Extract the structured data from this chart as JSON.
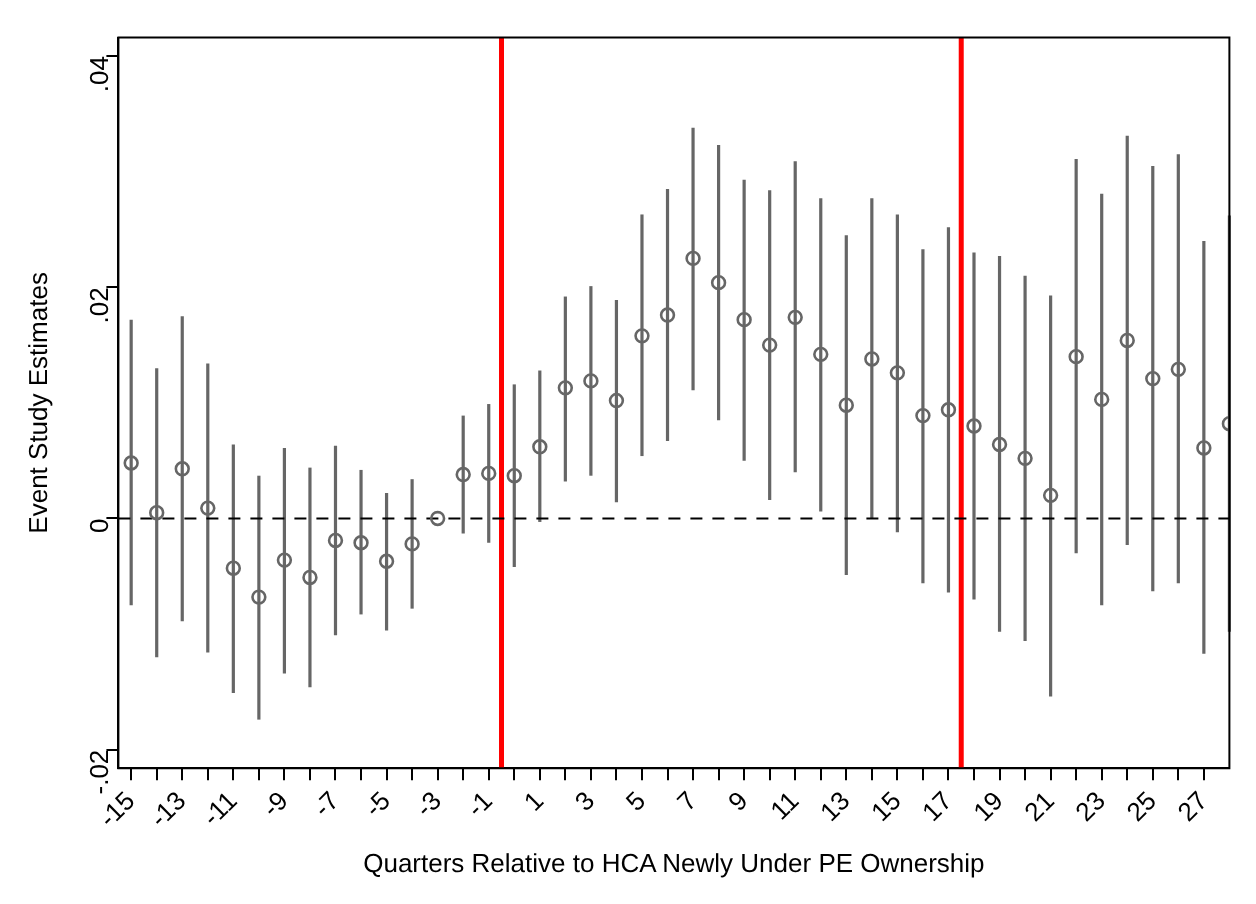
{
  "chart_data": {
    "type": "scatter",
    "xlabel": "Quarters Relative to HCA Newly Under PE Ownership",
    "ylabel": "Event Study Estimates",
    "x": [
      -15,
      -14,
      -13,
      -12,
      -11,
      -10,
      -9,
      -8,
      -7,
      -6,
      -5,
      -4,
      -3,
      -2,
      -1,
      0,
      1,
      2,
      3,
      4,
      5,
      6,
      7,
      8,
      9,
      10,
      11,
      12,
      13,
      14,
      15,
      16,
      17,
      18,
      19,
      20,
      21,
      22,
      23,
      24,
      25,
      26,
      27,
      28
    ],
    "series": [
      {
        "color": "#666666",
        "values": [
          0.0048,
          0.0005,
          0.0043,
          0.0009,
          -0.0043,
          -0.0068,
          -0.0036,
          -0.0051,
          -0.0019,
          -0.0021,
          -0.0037,
          -0.0022,
          0,
          0.0038,
          0.0039,
          0.0037,
          0.0062,
          0.0113,
          0.0119,
          0.0102,
          0.0158,
          0.0176,
          0.0225,
          0.0204,
          0.0172,
          0.015,
          0.0174,
          0.0142,
          0.0098,
          0.0138,
          0.0126,
          0.0089,
          0.0094,
          0.008,
          0.0064,
          0.0052,
          0.002,
          0.014,
          0.0103,
          0.0154,
          0.0121,
          0.0129,
          0.0061,
          0.0082
        ],
        "errors": [
          [
            -0.0075,
            0.0172
          ],
          [
            -0.012,
            0.013
          ],
          [
            -0.0089,
            0.0175
          ],
          [
            -0.0116,
            0.0134
          ],
          [
            -0.0151,
            0.0064
          ],
          [
            -0.0174,
            0.0037
          ],
          [
            -0.0134,
            0.0061
          ],
          [
            -0.0146,
            0.0044
          ],
          [
            -0.0101,
            0.0063
          ],
          [
            -0.0083,
            0.0042
          ],
          [
            -0.0097,
            0.0022
          ],
          [
            -0.0078,
            0.0034
          ],
          null,
          [
            -0.0013,
            0.0089
          ],
          [
            -0.0021,
            0.0099
          ],
          [
            -0.0042,
            0.0116
          ],
          [
            -0.0003,
            0.0128
          ],
          [
            0.0032,
            0.0192
          ],
          [
            0.0037,
            0.0201
          ],
          [
            0.0014,
            0.0189
          ],
          [
            0.0054,
            0.0263
          ],
          [
            0.0067,
            0.0285
          ],
          [
            0.0111,
            0.0338
          ],
          [
            0.0085,
            0.0323
          ],
          [
            0.005,
            0.0293
          ],
          [
            0.0016,
            0.0284
          ],
          [
            0.004,
            0.0309
          ],
          [
            0.0006,
            0.0277
          ],
          [
            -0.0049,
            0.0245
          ],
          [
            0,
            0.0277
          ],
          [
            -0.0012,
            0.0263
          ],
          [
            -0.0056,
            0.0233
          ],
          [
            -0.0064,
            0.0252
          ],
          [
            -0.007,
            0.023
          ],
          [
            -0.0098,
            0.0227
          ],
          [
            -0.0106,
            0.021
          ],
          [
            -0.0154,
            0.0193
          ],
          [
            -0.003,
            0.0311
          ],
          [
            -0.0075,
            0.0281
          ],
          [
            -0.0023,
            0.0331
          ],
          [
            -0.0063,
            0.0305
          ],
          [
            -0.0056,
            0.0315
          ],
          [
            -0.0117,
            0.024
          ],
          [
            -0.0098,
            0.0262
          ]
        ]
      }
    ],
    "xlim": [
      -15.5,
      28
    ],
    "xticks": [
      -15,
      {
        "value": -14,
        "label": null
      },
      -13,
      {
        "value": -12,
        "label": null
      },
      -11,
      {
        "value": -10,
        "label": null
      },
      -9,
      {
        "value": -8,
        "label": null
      },
      -7,
      {
        "value": -6,
        "label": null
      },
      -5,
      {
        "value": -4,
        "label": null
      },
      -3,
      {
        "value": -2,
        "label": null
      },
      -1,
      {
        "value": 0,
        "label": null
      },
      1,
      {
        "value": 2,
        "label": null
      },
      3,
      {
        "value": 4,
        "label": null
      },
      5,
      {
        "value": 6,
        "label": null
      },
      7,
      {
        "value": 8,
        "label": null
      },
      9,
      {
        "value": 10,
        "label": null
      },
      11,
      {
        "value": 12,
        "label": null
      },
      13,
      {
        "value": 14,
        "label": null
      },
      15,
      {
        "value": 16,
        "label": null
      },
      17,
      {
        "value": 18,
        "label": null
      },
      19,
      {
        "value": 20,
        "label": null
      },
      21,
      {
        "value": 22,
        "label": null
      },
      23,
      {
        "value": 24,
        "label": null
      },
      25,
      {
        "value": 26,
        "label": null
      },
      27
    ],
    "ylim": [
      -0.0216,
      0.0416
    ],
    "yticks": [
      {
        "value": -0.02,
        "label": "-.02"
      },
      0,
      {
        "value": 0.02,
        "label": ".02"
      },
      {
        "value": 0.04,
        "label": ".04"
      }
    ],
    "ref_lines": [
      {
        "axis": "x",
        "value": -0.5,
        "color": "#ff0000",
        "line_style": "solid"
      },
      {
        "axis": "x",
        "value": 17.5,
        "color": "#ff0000",
        "line_style": "solid"
      },
      {
        "axis": "y",
        "value": 0,
        "color": "#000000",
        "line_style": "dashed"
      }
    ],
    "marker": "circle",
    "grid": false,
    "legend": false
  }
}
